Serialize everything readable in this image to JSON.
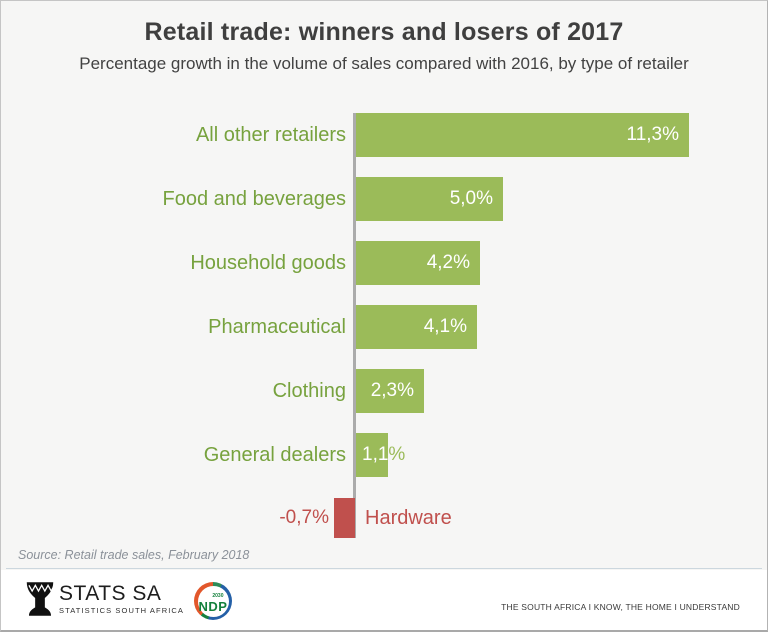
{
  "title": "Retail trade: winners and losers of 2017",
  "subtitle": "Percentage growth in the volume of sales compared with 2016, by type of retailer",
  "source": "Source: Retail trade sales, February 2018",
  "footer": {
    "stats_sa": {
      "name": "STATS SA",
      "tagline": "STATISTICS SOUTH AFRICA"
    },
    "ndp": {
      "label": "NDP",
      "year": "2030"
    },
    "slogan": "THE SOUTH AFRICA I KNOW, THE HOME I UNDERSTAND"
  },
  "colors": {
    "positive_bar": "#9BBB59",
    "negative_bar": "#C0504D",
    "category_text": "#77A23E",
    "negative_text": "#C0504D",
    "value_text": "#FFFFFF",
    "axis": "#ABABAB",
    "title_text": "#3F3F3F",
    "source_text": "#8B9199"
  },
  "chart_data": {
    "type": "bar",
    "orientation": "horizontal",
    "title": "Retail trade: winners and losers of 2017",
    "subtitle": "Percentage growth in the volume of sales compared with 2016, by type of retailer",
    "unit": "%",
    "comparison_base": "2016",
    "categories": [
      "All other retailers",
      "Food and beverages",
      "Household goods",
      "Pharmaceutical",
      "Clothing",
      "General dealers",
      "Hardware"
    ],
    "values": [
      11.3,
      5.0,
      4.2,
      4.1,
      2.3,
      1.1,
      -0.7
    ],
    "value_labels": [
      "11,3%",
      "5,0%",
      "4,2%",
      "4,1%",
      "2,3%",
      "1,1%",
      "-0,7%"
    ],
    "xlim": [
      -1,
      12
    ],
    "grid": false,
    "legend": false
  }
}
